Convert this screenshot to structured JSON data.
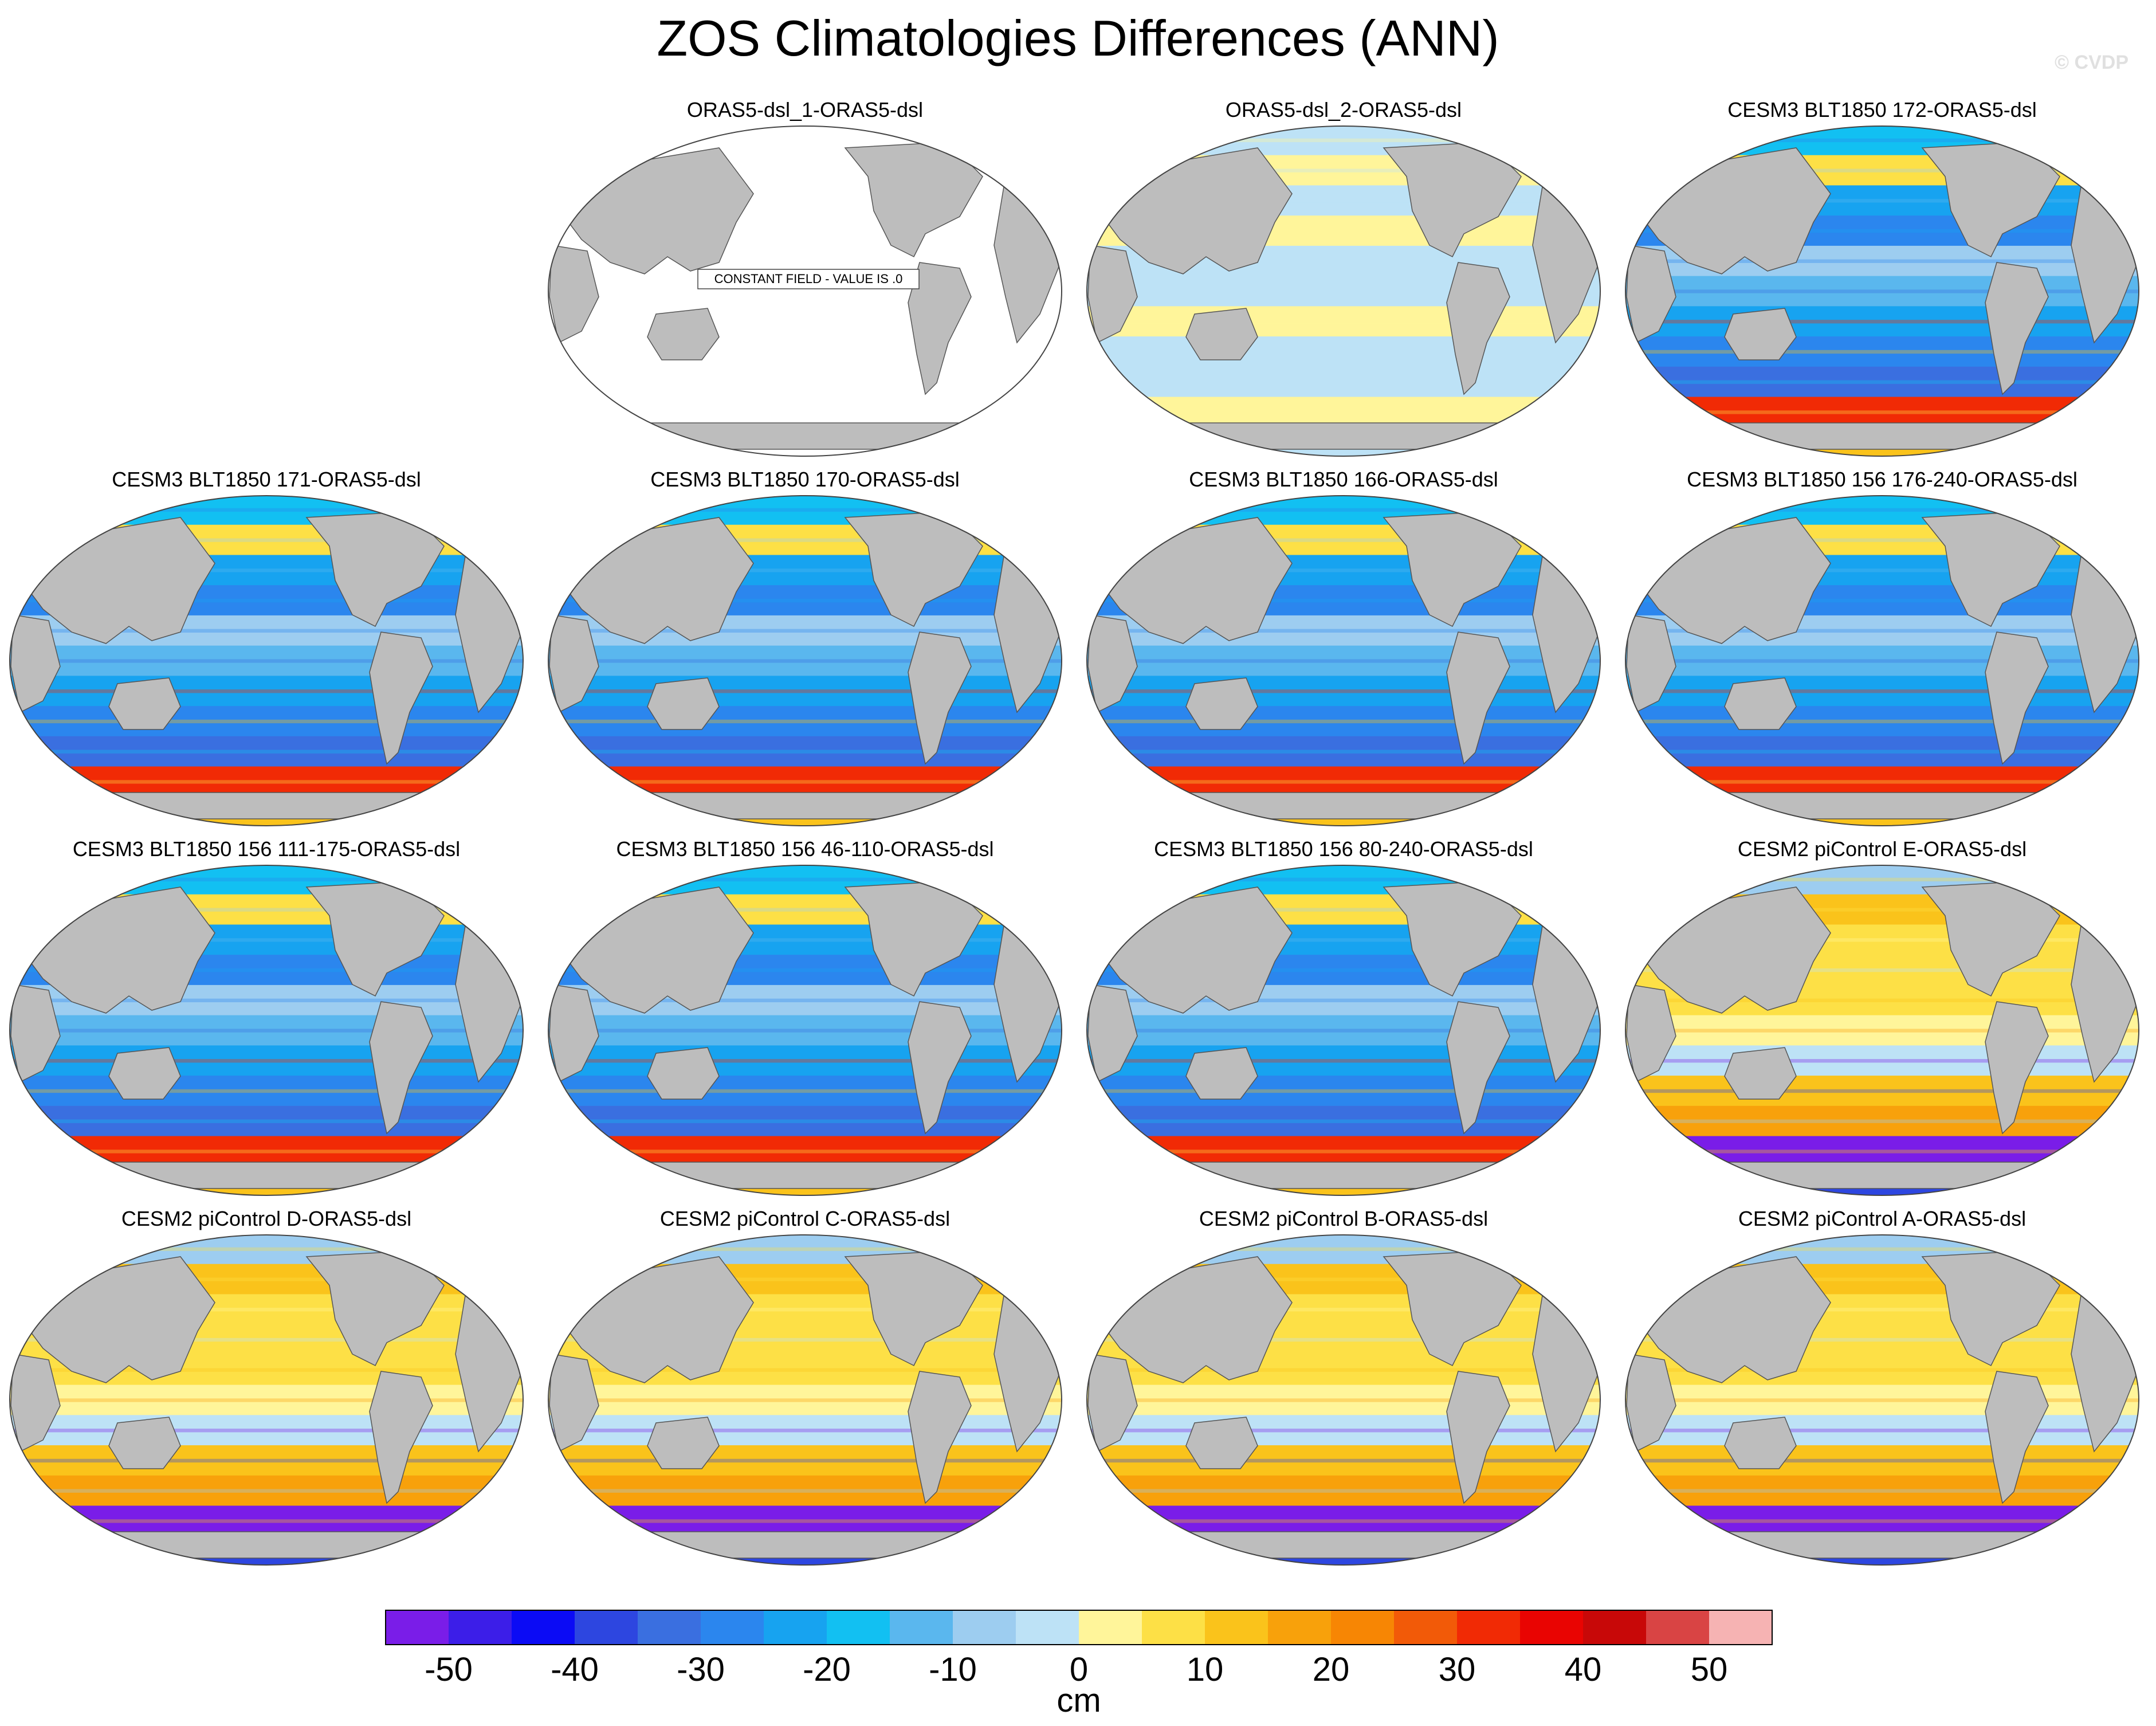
{
  "title": "ZOS Climatologies Differences (ANN)",
  "watermark": "© CVDP",
  "panels": [
    {
      "title": "ORAS5-dsl_1-ORAS5-dsl",
      "field": "constant",
      "note": "CONSTANT FIELD - VALUE IS .0"
    },
    {
      "title": "ORAS5-dsl_2-ORAS5-dsl",
      "field": "near-zero"
    },
    {
      "title": "CESM3 BLT1850 172-ORAS5-dsl",
      "field": "cesm3"
    },
    {
      "title": "CESM3 BLT1850 171-ORAS5-dsl",
      "field": "cesm3"
    },
    {
      "title": "CESM3 BLT1850 170-ORAS5-dsl",
      "field": "cesm3"
    },
    {
      "title": "CESM3 BLT1850 166-ORAS5-dsl",
      "field": "cesm3"
    },
    {
      "title": "CESM3 BLT1850 156 176-240-ORAS5-dsl",
      "field": "cesm3"
    },
    {
      "title": "CESM3 BLT1850 156 111-175-ORAS5-dsl",
      "field": "cesm3"
    },
    {
      "title": "CESM3 BLT1850 156 46-110-ORAS5-dsl",
      "field": "cesm3"
    },
    {
      "title": "CESM3 BLT1850 156 80-240-ORAS5-dsl",
      "field": "cesm3"
    },
    {
      "title": "CESM2 piControl E-ORAS5-dsl",
      "field": "cesm2"
    },
    {
      "title": "CESM2 piControl D-ORAS5-dsl",
      "field": "cesm2"
    },
    {
      "title": "CESM2 piControl C-ORAS5-dsl",
      "field": "cesm2"
    },
    {
      "title": "CESM2 piControl B-ORAS5-dsl",
      "field": "cesm2"
    },
    {
      "title": "CESM2 piControl A-ORAS5-dsl",
      "field": "cesm2"
    }
  ],
  "colorbar": {
    "unit": "cm",
    "colors": [
      "#7a1de8",
      "#3c1ee8",
      "#0b0bf5",
      "#2d46e0",
      "#3a6fe0",
      "#2b86ee",
      "#17a3f0",
      "#12c0f2",
      "#5ab7ee",
      "#9dcdf0",
      "#bde2f6",
      "#fff59a",
      "#fde046",
      "#fac31b",
      "#f8a10b",
      "#f78604",
      "#f25a08",
      "#f12a05",
      "#e90402",
      "#c80808",
      "#d94444",
      "#f6b3b3"
    ],
    "tick_labels": [
      "-50",
      "-40",
      "-30",
      "-20",
      "-10",
      "0",
      "10",
      "20",
      "30",
      "40",
      "50"
    ]
  }
}
